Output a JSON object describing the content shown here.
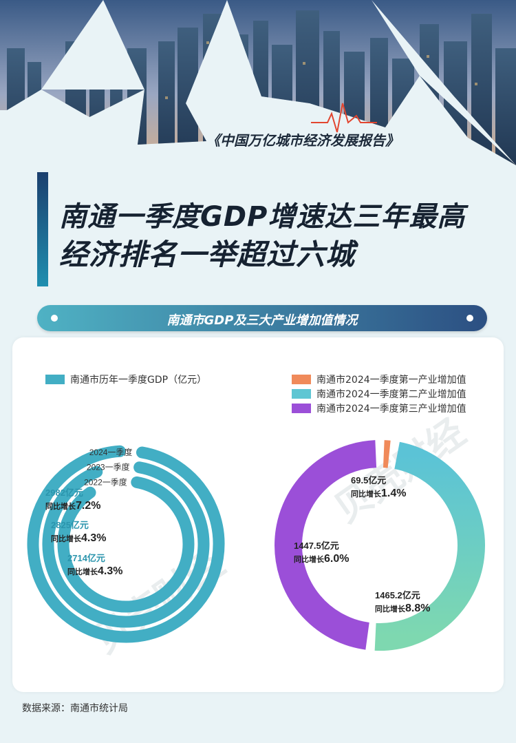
{
  "header": {
    "series": "《中国万亿城市经济发展报告》",
    "headline_1": "南通一季度GDP增速达三年最高",
    "headline_2": "经济排名一举超过六城"
  },
  "banner": {
    "title": "南通市GDP及三大产业增加值情况"
  },
  "watermark": "贝壳财经",
  "source": "数据来源：南通市统计局",
  "colors": {
    "gdp": "#42aec4",
    "primary": "#f08a5a",
    "secondary": "#5ec6d3",
    "tertiary": "#9b4fd8"
  },
  "chart_data": [
    {
      "type": "radial-bar",
      "legend": "南通市历年一季度GDP（亿元）",
      "categories": [
        "2024一季度",
        "2023一季度",
        "2022一季度"
      ],
      "values": [
        2982,
        2825,
        2714
      ],
      "value_labels": [
        "2982亿元",
        "2825亿元",
        "2714亿元"
      ],
      "growth_prefix": "同比增长",
      "growth": [
        "7.2%",
        "4.3%",
        "4.3%"
      ]
    },
    {
      "type": "pie",
      "variant": "donut",
      "series": [
        {
          "name": "南通市2024一季度第一产业增加值",
          "value": 69.5,
          "value_label": "69.5亿元",
          "growth": "1.4%"
        },
        {
          "name": "南通市2024一季度第二产业增加值",
          "value": 1465.2,
          "value_label": "1465.2亿元",
          "growth": "8.8%"
        },
        {
          "name": "南通市2024一季度第三产业增加值",
          "value": 1447.5,
          "value_label": "1447.5亿元",
          "growth": "6.0%"
        }
      ],
      "growth_prefix": "同比增长"
    }
  ]
}
